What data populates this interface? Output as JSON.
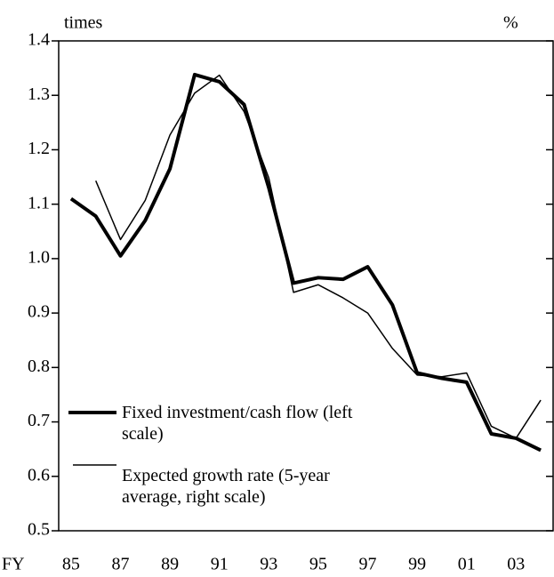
{
  "chart_data": {
    "type": "line",
    "y_unit_left": "times",
    "y_unit_right": "%",
    "x_label": "FY",
    "categories": [
      "85",
      null,
      "87",
      null,
      "89",
      null,
      "91",
      null,
      "93",
      null,
      "95",
      null,
      "97",
      null,
      "99",
      null,
      "01",
      null,
      "03",
      null
    ],
    "series": [
      {
        "name": "Fixed investment/cash flow (left scale)",
        "color": "#000000",
        "width": 4,
        "values": [
          1.11,
          1.078,
          1.005,
          1.07,
          1.165,
          1.338,
          1.325,
          1.283,
          1.13,
          0.955,
          0.965,
          0.962,
          0.985,
          0.915,
          0.79,
          0.78,
          0.773,
          0.678,
          0.67,
          0.648
        ]
      },
      {
        "name": "Expected growth rate (5-year average, right scale)",
        "color": "#000000",
        "width": 1.5,
        "values": [
          null,
          1.143,
          1.035,
          1.107,
          1.227,
          1.304,
          1.337,
          1.27,
          1.148,
          0.938,
          0.952,
          0.928,
          0.9,
          0.835,
          0.786,
          0.783,
          0.79,
          0.692,
          0.67,
          0.74
        ]
      }
    ],
    "ylim": [
      0.5,
      1.4
    ],
    "yticks": [
      0.5,
      0.6,
      0.7,
      0.8,
      0.9,
      {
        "value": 1,
        "label": "1.0"
      },
      1.1,
      1.2,
      1.3,
      1.4
    ]
  }
}
